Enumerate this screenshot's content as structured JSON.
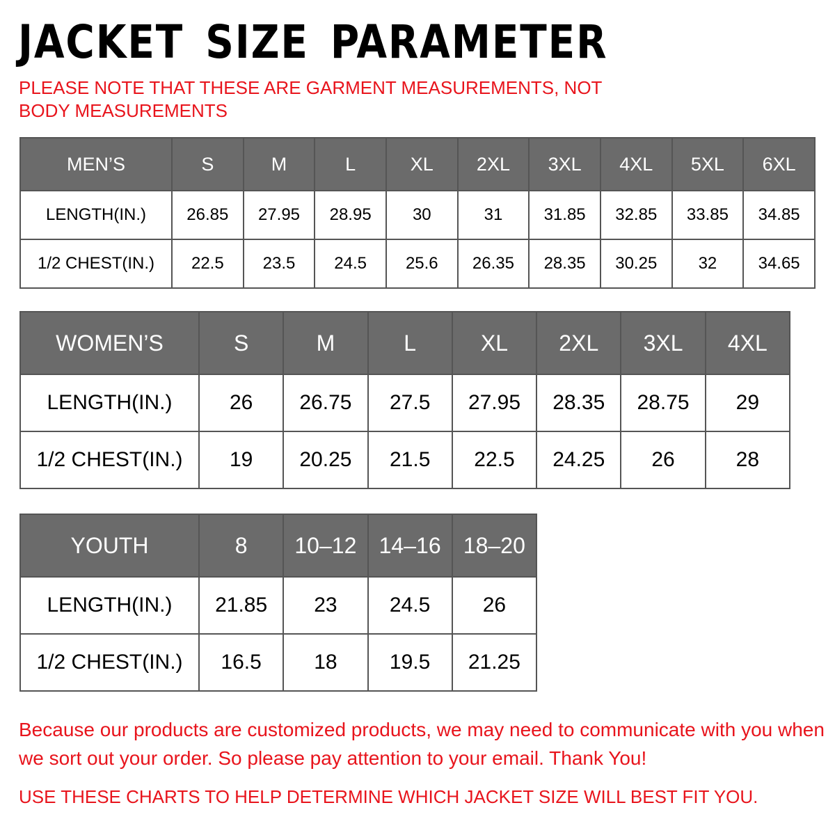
{
  "title": "JACKET SIZE PARAMETER",
  "note": "PLEASE NOTE THAT THESE ARE GARMENT MEASUREMENTS, NOT BODY MEASUREMENTS",
  "colors": {
    "header_bg": "#6b6b6b",
    "accent_red": "#e8141c"
  },
  "men": {
    "label": "MEN’S",
    "sizes": [
      "S",
      "M",
      "L",
      "XL",
      "2XL",
      "3XL",
      "4XL",
      "5XL",
      "6XL"
    ],
    "rows": [
      {
        "label": "LENGTH(IN.)",
        "values": [
          "26.85",
          "27.95",
          "28.95",
          "30",
          "31",
          "31.85",
          "32.85",
          "33.85",
          "34.85"
        ]
      },
      {
        "label": "1/2 CHEST(IN.)",
        "values": [
          "22.5",
          "23.5",
          "24.5",
          "25.6",
          "26.35",
          "28.35",
          "30.25",
          "32",
          "34.65"
        ]
      }
    ]
  },
  "women": {
    "label": "WOMEN’S",
    "sizes": [
      "S",
      "M",
      "L",
      "XL",
      "2XL",
      "3XL",
      "4XL"
    ],
    "rows": [
      {
        "label": "LENGTH(IN.)",
        "values": [
          "26",
          "26.75",
          "27.5",
          "27.95",
          "28.35",
          "28.75",
          "29"
        ]
      },
      {
        "label": "1/2 CHEST(IN.)",
        "values": [
          "19",
          "20.25",
          "21.5",
          "22.5",
          "24.25",
          "26",
          "28"
        ]
      }
    ]
  },
  "youth": {
    "label": "YOUTH",
    "sizes": [
      "8",
      "10–12",
      "14–16",
      "18–20"
    ],
    "rows": [
      {
        "label": "LENGTH(IN.)",
        "values": [
          "21.85",
          "23",
          "24.5",
          "26"
        ]
      },
      {
        "label": "1/2 CHEST(IN.)",
        "values": [
          "16.5",
          "18",
          "19.5",
          "21.25"
        ]
      }
    ]
  },
  "footer": {
    "message": "Because our products are customized products, we may need to communicate with you when we sort out your order. So please pay attention to your email. Thank You!",
    "hint": "USE THESE CHARTS TO HELP DETERMINE WHICH JACKET SIZE WILL BEST FIT YOU."
  }
}
